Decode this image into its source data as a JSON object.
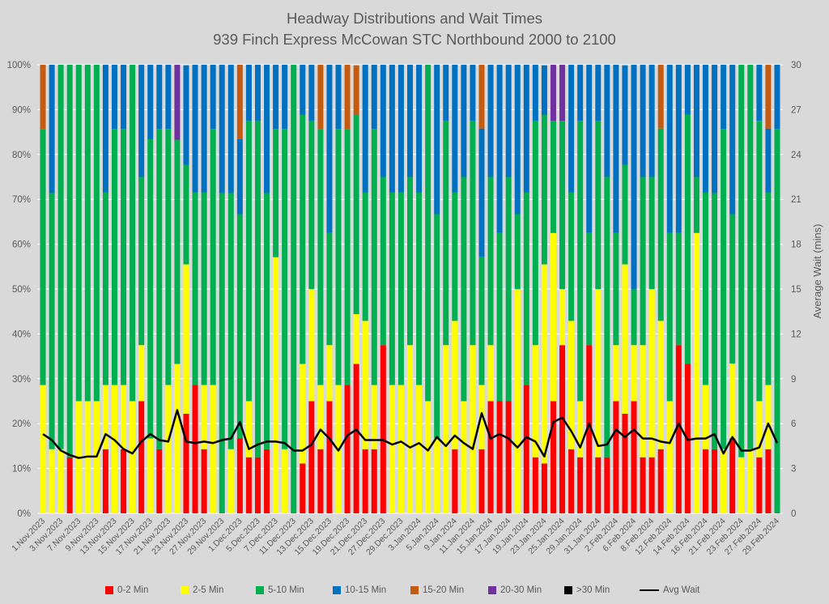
{
  "chart_data": {
    "type": "bar",
    "stacked": true,
    "title": "Headway Distributions and Wait Times",
    "subtitle": "939 Finch Express  McCowan STC Northbound 2000 to 2100",
    "xlabel": "",
    "ylabel": "",
    "y2label": "Average Wait (mins)",
    "ylim": [
      0,
      100
    ],
    "y2lim": [
      0,
      30
    ],
    "yticks": [
      "0%",
      "10%",
      "20%",
      "30%",
      "40%",
      "50%",
      "60%",
      "70%",
      "80%",
      "90%",
      "100%"
    ],
    "y2ticks": [
      "0",
      "3",
      "6",
      "9",
      "12",
      "15",
      "18",
      "21",
      "24",
      "27",
      "30"
    ],
    "grid": true,
    "legend_position": "bottom",
    "x_labels": [
      "1.Nov.2023",
      "3.Nov.2023",
      "7.Nov.2023",
      "9.Nov.2023",
      "13.Nov.2023",
      "15.Nov.2023",
      "17.Nov.2023",
      "21.Nov.2023",
      "23.Nov.2023",
      "27.Nov.2023",
      "29.Nov.2023",
      "1.Dec.2023",
      "5.Dec.2023",
      "7.Dec.2023",
      "11.Dec.2023",
      "13.Dec.2023",
      "15.Dec.2023",
      "19.Dec.2023",
      "21.Dec.2023",
      "27.Dec.2023",
      "29.Dec.2023",
      "3.Jan.2024",
      "5.Jan.2024",
      "9.Jan.2024",
      "11.Jan.2024",
      "15.Jan.2024",
      "17.Jan.2024",
      "19.Jan.2024",
      "23.Jan.2024",
      "25.Jan.2024",
      "29.Jan.2024",
      "31.Jan.2024",
      "2.Feb.2024",
      "6.Feb.2024",
      "8.Feb.2024",
      "12.Feb.2024",
      "14.Feb.2024",
      "16.Feb.2024",
      "21.Feb.2024",
      "23.Feb.2024",
      "27.Feb.2024",
      "29.Feb.2024"
    ],
    "bar_count": 83,
    "series": [
      {
        "name": "0-2 Min",
        "color": "#ff0000",
        "values": [
          0,
          0,
          0,
          12.5,
          0,
          0,
          0,
          14.3,
          0,
          14.3,
          0,
          25,
          0,
          14.3,
          0,
          0,
          22.2,
          28.6,
          14.3,
          0,
          0,
          0,
          16.7,
          12.5,
          12.5,
          14.3,
          0,
          0,
          0,
          11.1,
          25,
          14.3,
          25,
          0,
          28.6,
          33.3,
          14.3,
          14.3,
          37.5,
          0,
          0,
          0,
          0,
          0,
          0,
          0,
          14.3,
          0,
          0,
          14.3,
          25,
          25,
          25,
          0,
          28.6,
          12.5,
          11.1,
          25,
          37.5,
          14.3,
          12.5,
          37.5,
          12.5,
          12.5,
          25,
          22.2,
          25,
          12.5,
          12.5,
          14.3,
          0,
          37.5,
          33.3,
          0,
          14.3,
          14.3,
          0,
          16.7,
          0,
          0,
          12.5,
          14.3,
          0
        ]
      },
      {
        "name": "2-5 Min",
        "color": "#ffff00",
        "values": [
          28.6,
          14.3,
          14.3,
          0,
          25,
          25,
          25,
          14.3,
          28.6,
          14.3,
          25,
          12.5,
          16.7,
          0,
          28.6,
          33.3,
          33.3,
          0,
          14.3,
          28.6,
          0,
          14.3,
          0,
          12.5,
          0,
          0,
          57.1,
          14.3,
          0,
          22.2,
          25,
          14.3,
          12.5,
          28.6,
          0,
          11.1,
          28.6,
          14.3,
          0,
          28.6,
          28.6,
          37.5,
          28.6,
          25,
          16.7,
          37.5,
          28.6,
          25,
          37.5,
          14.3,
          12.5,
          0,
          0,
          50,
          0,
          25,
          44.4,
          37.5,
          12.5,
          28.6,
          12.5,
          0,
          37.5,
          0,
          12.5,
          33.3,
          12.5,
          25,
          37.5,
          28.6,
          25,
          0,
          0,
          62.5,
          14.3,
          0,
          14.3,
          16.7,
          12.5,
          14.3,
          12.5,
          14.3,
          0
        ]
      },
      {
        "name": "5-10 Min",
        "color": "#00b050",
        "values": [
          57.1,
          57.1,
          85.7,
          87.5,
          75,
          75,
          75,
          42.9,
          57.1,
          57.1,
          75,
          37.5,
          66.7,
          71.4,
          57.1,
          50,
          22.2,
          42.9,
          42.9,
          57.1,
          71.4,
          57.1,
          50,
          62.5,
          75,
          57.1,
          28.6,
          71.4,
          100,
          55.6,
          37.5,
          57.1,
          25,
          57.1,
          57.1,
          44.4,
          28.6,
          57.1,
          37.5,
          42.9,
          42.9,
          37.5,
          42.9,
          75,
          50,
          50,
          28.6,
          50,
          50,
          28.6,
          37.5,
          37.5,
          50,
          16.7,
          42.9,
          50,
          33.3,
          25,
          37.5,
          28.6,
          62.5,
          25,
          37.5,
          62.5,
          25,
          22.2,
          12.5,
          37.5,
          25,
          42.9,
          37.5,
          25,
          55.6,
          12.5,
          42.9,
          57.1,
          71.4,
          33.3,
          87.5,
          85.7,
          62.5,
          42.9,
          85.7
        ]
      },
      {
        "name": "10-15 Min",
        "color": "#0070c0",
        "values": [
          0,
          28.6,
          0,
          0,
          0,
          0,
          0,
          28.6,
          14.3,
          14.3,
          0,
          25,
          16.7,
          14.3,
          14.3,
          0,
          22.2,
          28.6,
          28.6,
          14.3,
          28.6,
          28.6,
          16.7,
          12.5,
          12.5,
          28.6,
          14.3,
          14.3,
          0,
          11.1,
          12.5,
          0,
          37.5,
          14.3,
          0,
          0,
          28.6,
          14.3,
          25,
          28.6,
          28.6,
          25,
          28.6,
          0,
          33.3,
          12.5,
          28.6,
          25,
          12.5,
          28.6,
          25,
          37.5,
          25,
          33.3,
          28.6,
          12.5,
          11.1,
          0,
          0,
          28.6,
          12.5,
          37.5,
          12.5,
          25,
          37.5,
          22.2,
          50,
          25,
          25,
          0,
          37.5,
          37.5,
          11.1,
          25,
          28.6,
          28.6,
          14.3,
          33.3,
          0,
          0,
          12.5,
          14.3,
          14.3
        ]
      },
      {
        "name": "15-20 Min",
        "color": "#c55a11",
        "values": [
          14.3,
          0,
          0,
          0,
          0,
          0,
          0,
          0,
          0,
          0,
          0,
          0,
          0,
          0,
          0,
          0,
          0,
          0,
          0,
          0,
          0,
          0,
          16.7,
          0,
          0,
          0,
          0,
          0,
          0,
          0,
          0,
          14.3,
          0,
          0,
          14.3,
          11.1,
          0,
          0,
          0,
          0,
          0,
          0,
          0,
          0,
          0,
          0,
          0,
          0,
          0,
          14.3,
          0,
          0,
          0,
          0,
          0,
          0,
          0,
          0,
          0,
          0,
          0,
          0,
          0,
          0,
          0,
          0,
          0,
          0,
          0,
          14.3,
          0,
          0,
          0,
          0,
          0,
          0,
          0,
          0,
          0,
          0,
          0,
          14.3,
          0
        ]
      },
      {
        "name": "20-30 Min",
        "color": "#7030a0",
        "values": [
          0,
          0,
          0,
          0,
          0,
          0,
          0,
          0,
          0,
          0,
          0,
          0,
          0,
          0,
          0,
          16.7,
          0,
          0,
          0,
          0,
          0,
          0,
          0,
          0,
          0,
          0,
          0,
          0,
          0,
          0,
          0,
          0,
          0,
          0,
          0,
          0,
          0,
          0,
          0,
          0,
          0,
          0,
          0,
          0,
          0,
          0,
          0,
          0,
          0,
          0,
          0,
          0,
          0,
          0,
          0,
          0,
          0,
          12.5,
          12.5,
          0,
          0,
          0,
          0,
          0,
          0,
          0,
          0,
          0,
          0,
          0,
          0,
          0,
          0,
          0,
          0,
          0,
          0,
          0,
          0,
          0,
          0,
          0,
          0
        ]
      },
      {
        "name": ">30 Min",
        "color": "#000000",
        "values": [
          0,
          0,
          0,
          0,
          0,
          0,
          0,
          0,
          0,
          0,
          0,
          0,
          0,
          0,
          0,
          0,
          0,
          0,
          0,
          0,
          0,
          0,
          0,
          0,
          0,
          0,
          0,
          0,
          0,
          0,
          0,
          0,
          0,
          0,
          0,
          0,
          0,
          0,
          0,
          0,
          0,
          0,
          0,
          0,
          0,
          0,
          0,
          0,
          0,
          0,
          0,
          0,
          0,
          0,
          0,
          0,
          0,
          0,
          0,
          0,
          0,
          0,
          0,
          0,
          0,
          0,
          0,
          0,
          0,
          0,
          0,
          0,
          0,
          0,
          0,
          0,
          0,
          0,
          0,
          0,
          0,
          0,
          0
        ]
      }
    ],
    "line": {
      "name": "Avg Wait",
      "color": "#000000",
      "axis": "right",
      "values": [
        5.3,
        4.9,
        4.2,
        3.9,
        3.7,
        3.8,
        3.8,
        5.3,
        4.9,
        4.3,
        4.0,
        4.8,
        5.3,
        4.9,
        4.8,
        6.9,
        4.8,
        4.7,
        4.8,
        4.7,
        4.9,
        5.0,
        6.1,
        4.3,
        4.6,
        4.8,
        4.8,
        4.7,
        4.2,
        4.2,
        4.6,
        5.6,
        5.0,
        4.2,
        5.2,
        5.6,
        4.9,
        4.9,
        4.9,
        4.6,
        4.8,
        4.4,
        4.7,
        4.2,
        5.1,
        4.5,
        5.2,
        4.7,
        4.3,
        6.7,
        5.0,
        5.3,
        5.0,
        4.4,
        5.1,
        4.8,
        3.8,
        6.1,
        6.4,
        5.5,
        4.4,
        6.0,
        4.5,
        4.6,
        5.6,
        5.1,
        5.6,
        5.0,
        5.0,
        4.8,
        4.7,
        6.0,
        4.9,
        5.0,
        5.0,
        5.3,
        4.0,
        5.1,
        4.2,
        4.2,
        4.4,
        6.0,
        4.7
      ]
    }
  }
}
